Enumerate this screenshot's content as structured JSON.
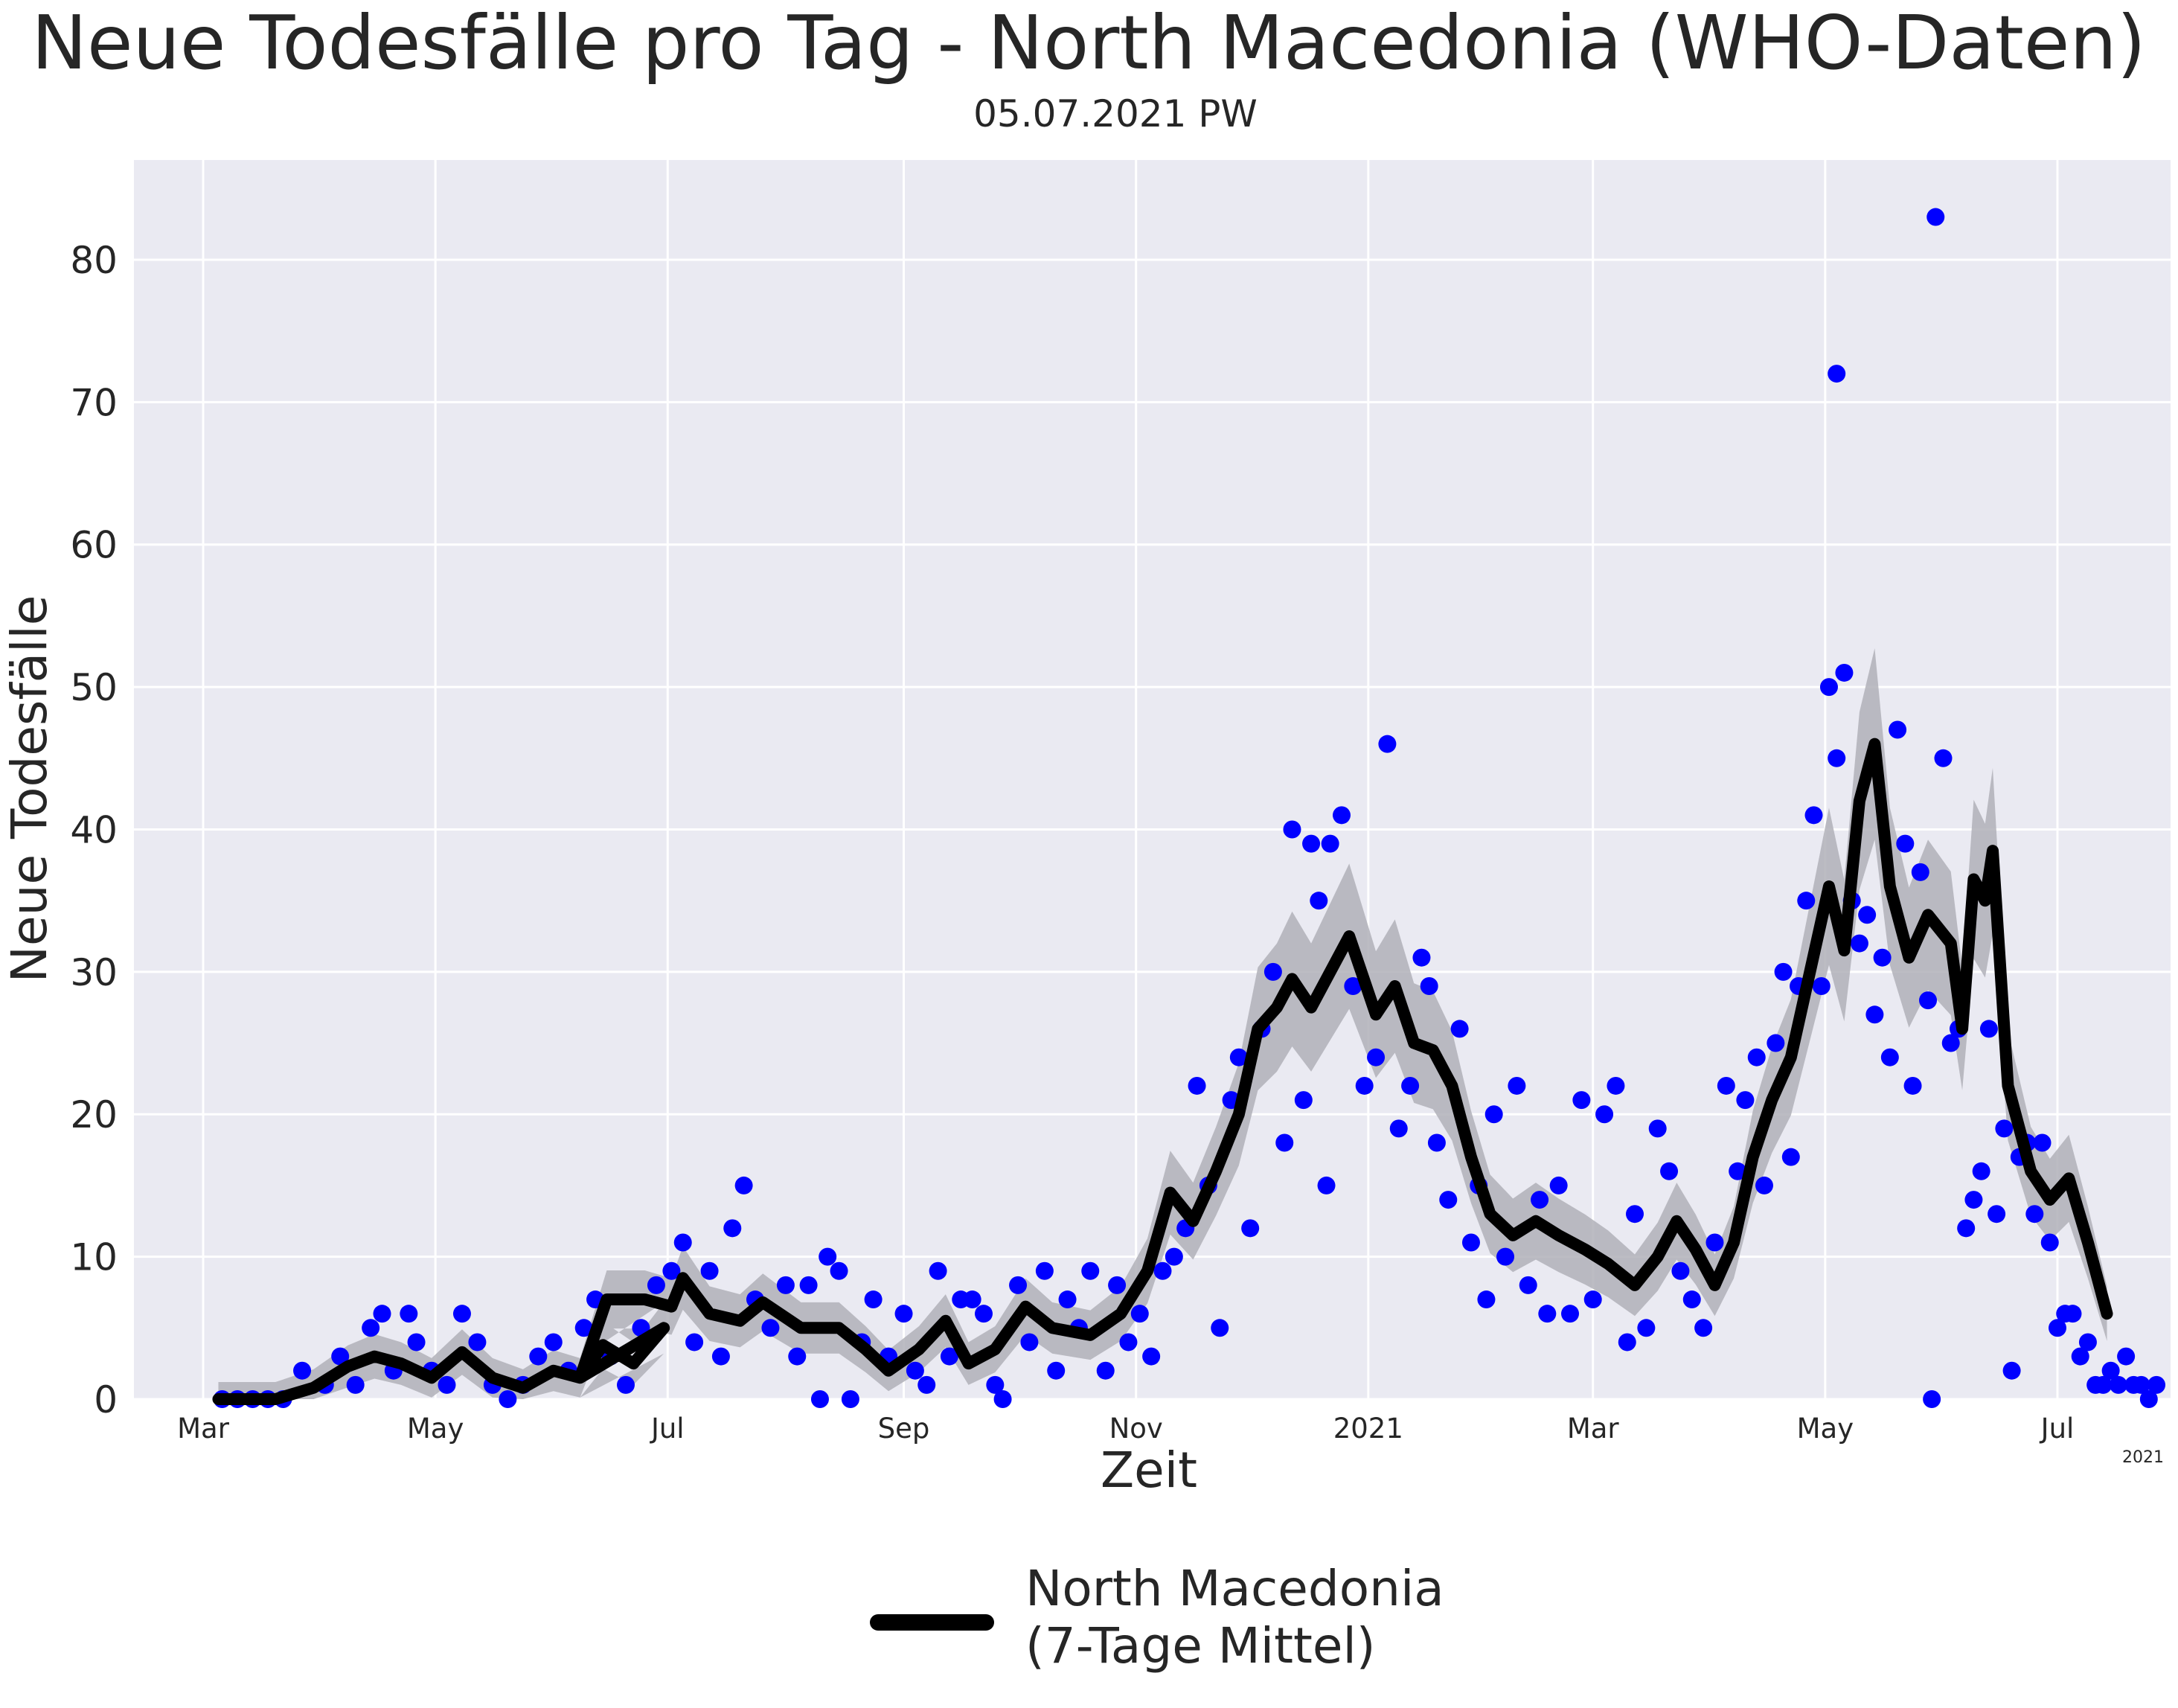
{
  "chart_data": {
    "type": "line",
    "title": "Neue Todesfälle pro Tag - North Macedonia (WHO-Daten)",
    "subtitle": "05.07.2021 PW",
    "xlabel": "Zeit",
    "ylabel": "Neue Todesfälle",
    "x_range": [
      "2020-02-01",
      "2021-07-20"
    ],
    "ylim": [
      0,
      87
    ],
    "yticks": [
      0,
      10,
      20,
      30,
      40,
      50,
      60,
      70,
      80
    ],
    "xticks": [
      {
        "date": "2020-03-01",
        "label": "Mar"
      },
      {
        "date": "2020-05-01",
        "label": "May"
      },
      {
        "date": "2020-07-01",
        "label": "Jul"
      },
      {
        "date": "2020-09-01",
        "label": "Sep"
      },
      {
        "date": "2020-11-01",
        "label": "Nov"
      },
      {
        "date": "2021-01-01",
        "label": "2021"
      },
      {
        "date": "2021-03-01",
        "label": "Mar"
      },
      {
        "date": "2021-05-01",
        "label": "May"
      },
      {
        "date": "2021-07-01",
        "label": "Jul"
      }
    ],
    "x_offset_label": "2021",
    "grid": true,
    "legend": {
      "position": "bottom-center",
      "entries": [
        {
          "label": "North Macedonia\n(7-Tage Mittel)",
          "color": "#000000"
        }
      ]
    },
    "colors": {
      "daily_points": "#0000ff",
      "mean_line": "#000000",
      "band": "#b0b0b8",
      "background": "#eaeaf2",
      "grid": "#ffffff"
    },
    "series": [
      {
        "name": "North Macedonia (7-Tage Mittel)",
        "kind": "line",
        "points": [
          [
            "2020-03-05",
            0
          ],
          [
            "2020-03-20",
            0
          ],
          [
            "2020-03-30",
            0.8
          ],
          [
            "2020-04-08",
            2.3
          ],
          [
            "2020-04-15",
            3
          ],
          [
            "2020-04-22",
            2.5
          ],
          [
            "2020-04-30",
            1.5
          ],
          [
            "2020-05-08",
            3.3
          ],
          [
            "2020-05-16",
            1.5
          ],
          [
            "2020-05-24",
            0.8
          ],
          [
            "2020-06-01",
            2
          ],
          [
            "2020-06-08",
            1.5
          ],
          [
            "2020-06-14",
            3.8
          ],
          [
            "2020-06-22",
            2.5
          ],
          [
            "2020-06-30",
            5
          ],
          [
            "2020-06-08",
            1.5
          ],
          [
            "2020-06-15",
            7
          ],
          [
            "2020-06-25",
            7
          ],
          [
            "2020-07-02",
            6.5
          ],
          [
            "2020-07-05",
            8.5
          ],
          [
            "2020-07-12",
            6
          ],
          [
            "2020-07-20",
            5.5
          ],
          [
            "2020-07-26",
            6.8
          ],
          [
            "2020-08-05",
            5
          ],
          [
            "2020-08-15",
            5
          ],
          [
            "2020-08-22",
            3.5
          ],
          [
            "2020-08-28",
            2
          ],
          [
            "2020-09-05",
            3.5
          ],
          [
            "2020-09-12",
            5.5
          ],
          [
            "2020-09-18",
            2.5
          ],
          [
            "2020-09-25",
            3.5
          ],
          [
            "2020-10-03",
            6.5
          ],
          [
            "2020-10-10",
            5
          ],
          [
            "2020-10-20",
            4.5
          ],
          [
            "2020-10-28",
            6
          ],
          [
            "2020-11-04",
            9
          ],
          [
            "2020-11-10",
            14.5
          ],
          [
            "2020-11-16",
            12.5
          ],
          [
            "2020-11-22",
            16
          ],
          [
            "2020-11-28",
            20
          ],
          [
            "2020-12-03",
            26
          ],
          [
            "2020-12-08",
            27.5
          ],
          [
            "2020-12-12",
            29.5
          ],
          [
            "2020-12-17",
            27.5
          ],
          [
            "2020-12-22",
            30
          ],
          [
            "2020-12-27",
            32.5
          ],
          [
            "2021-01-03",
            27
          ],
          [
            "2021-01-08",
            29
          ],
          [
            "2021-01-13",
            25
          ],
          [
            "2021-01-18",
            24.5
          ],
          [
            "2021-01-23",
            22
          ],
          [
            "2021-01-28",
            17
          ],
          [
            "2021-02-02",
            13
          ],
          [
            "2021-02-08",
            11.5
          ],
          [
            "2021-02-14",
            12.5
          ],
          [
            "2021-02-20",
            11.5
          ],
          [
            "2021-02-27",
            10.5
          ],
          [
            "2021-03-05",
            9.5
          ],
          [
            "2021-03-12",
            8
          ],
          [
            "2021-03-18",
            10
          ],
          [
            "2021-03-23",
            12.5
          ],
          [
            "2021-03-28",
            10.5
          ],
          [
            "2021-04-02",
            8
          ],
          [
            "2021-04-07",
            11
          ],
          [
            "2021-04-12",
            17
          ],
          [
            "2021-04-17",
            21
          ],
          [
            "2021-04-22",
            24
          ],
          [
            "2021-04-27",
            30
          ],
          [
            "2021-05-02",
            36
          ],
          [
            "2021-05-06",
            31.5
          ],
          [
            "2021-05-10",
            42
          ],
          [
            "2021-05-14",
            46
          ],
          [
            "2021-05-18",
            36
          ],
          [
            "2021-05-23",
            31
          ],
          [
            "2021-05-28",
            34
          ],
          [
            "2021-06-03",
            32
          ],
          [
            "2021-06-06",
            26
          ],
          [
            "2021-06-09",
            36.5
          ],
          [
            "2021-06-12",
            35
          ],
          [
            "2021-06-14",
            38.5
          ],
          [
            "2021-06-18",
            22
          ],
          [
            "2021-06-24",
            16
          ],
          [
            "2021-06-29",
            14
          ],
          [
            "2021-07-04",
            15.5
          ],
          [
            "2021-07-09",
            11
          ],
          [
            "2021-07-14",
            6
          ]
        ]
      },
      {
        "name": "",
        "kind": "scatter",
        "points": [
          [
            "2020-03-06",
            0
          ],
          [
            "2020-03-10",
            0
          ],
          [
            "2020-03-14",
            0
          ],
          [
            "2020-03-18",
            0
          ],
          [
            "2020-03-22",
            0
          ],
          [
            "2020-03-27",
            2
          ],
          [
            "2020-04-02",
            1
          ],
          [
            "2020-04-06",
            3
          ],
          [
            "2020-04-10",
            1
          ],
          [
            "2020-04-14",
            5
          ],
          [
            "2020-04-17",
            6
          ],
          [
            "2020-04-20",
            2
          ],
          [
            "2020-04-24",
            6
          ],
          [
            "2020-04-26",
            4
          ],
          [
            "2020-04-30",
            2
          ],
          [
            "2020-05-04",
            1
          ],
          [
            "2020-05-08",
            6
          ],
          [
            "2020-05-12",
            4
          ],
          [
            "2020-05-16",
            1
          ],
          [
            "2020-05-20",
            0
          ],
          [
            "2020-05-24",
            1
          ],
          [
            "2020-05-28",
            3
          ],
          [
            "2020-06-01",
            4
          ],
          [
            "2020-06-05",
            2
          ],
          [
            "2020-06-09",
            5
          ],
          [
            "2020-06-12",
            7
          ],
          [
            "2020-06-16",
            3
          ],
          [
            "2020-06-20",
            1
          ],
          [
            "2020-06-24",
            5
          ],
          [
            "2020-06-28",
            8
          ],
          [
            "2020-07-02",
            9
          ],
          [
            "2020-07-05",
            11
          ],
          [
            "2020-07-08",
            4
          ],
          [
            "2020-07-12",
            9
          ],
          [
            "2020-07-15",
            3
          ],
          [
            "2020-07-18",
            12
          ],
          [
            "2020-07-21",
            15
          ],
          [
            "2020-07-24",
            7
          ],
          [
            "2020-07-28",
            5
          ],
          [
            "2020-08-01",
            8
          ],
          [
            "2020-08-04",
            3
          ],
          [
            "2020-08-07",
            8
          ],
          [
            "2020-08-10",
            0
          ],
          [
            "2020-08-12",
            10
          ],
          [
            "2020-08-15",
            9
          ],
          [
            "2020-08-18",
            0
          ],
          [
            "2020-08-21",
            4
          ],
          [
            "2020-08-24",
            7
          ],
          [
            "2020-08-28",
            3
          ],
          [
            "2020-09-01",
            6
          ],
          [
            "2020-09-04",
            2
          ],
          [
            "2020-09-07",
            1
          ],
          [
            "2020-09-10",
            9
          ],
          [
            "2020-09-13",
            3
          ],
          [
            "2020-09-16",
            7
          ],
          [
            "2020-09-19",
            7
          ],
          [
            "2020-09-22",
            6
          ],
          [
            "2020-09-25",
            1
          ],
          [
            "2020-09-27",
            0
          ],
          [
            "2020-10-01",
            8
          ],
          [
            "2020-10-04",
            4
          ],
          [
            "2020-10-08",
            9
          ],
          [
            "2020-10-11",
            2
          ],
          [
            "2020-10-14",
            7
          ],
          [
            "2020-10-17",
            5
          ],
          [
            "2020-10-20",
            9
          ],
          [
            "2020-10-24",
            2
          ],
          [
            "2020-10-27",
            8
          ],
          [
            "2020-10-30",
            4
          ],
          [
            "2020-11-02",
            6
          ],
          [
            "2020-11-05",
            3
          ],
          [
            "2020-11-08",
            9
          ],
          [
            "2020-11-11",
            10
          ],
          [
            "2020-11-14",
            12
          ],
          [
            "2020-11-17",
            22
          ],
          [
            "2020-11-20",
            15
          ],
          [
            "2020-11-23",
            5
          ],
          [
            "2020-11-26",
            21
          ],
          [
            "2020-11-28",
            24
          ],
          [
            "2020-12-01",
            12
          ],
          [
            "2020-12-04",
            26
          ],
          [
            "2020-12-07",
            30
          ],
          [
            "2020-12-10",
            18
          ],
          [
            "2020-12-12",
            40
          ],
          [
            "2020-12-15",
            21
          ],
          [
            "2020-12-17",
            39
          ],
          [
            "2020-12-19",
            35
          ],
          [
            "2020-12-21",
            15
          ],
          [
            "2020-12-22",
            39
          ],
          [
            "2020-12-25",
            41
          ],
          [
            "2020-12-28",
            29
          ],
          [
            "2020-12-31",
            22
          ],
          [
            "2021-01-03",
            24
          ],
          [
            "2021-01-06",
            46
          ],
          [
            "2021-01-09",
            19
          ],
          [
            "2021-01-12",
            22
          ],
          [
            "2021-01-15",
            31
          ],
          [
            "2021-01-17",
            29
          ],
          [
            "2021-01-19",
            18
          ],
          [
            "2021-01-22",
            14
          ],
          [
            "2021-01-25",
            26
          ],
          [
            "2021-01-28",
            11
          ],
          [
            "2021-01-30",
            15
          ],
          [
            "2021-02-01",
            7
          ],
          [
            "2021-02-03",
            20
          ],
          [
            "2021-02-06",
            10
          ],
          [
            "2021-02-09",
            22
          ],
          [
            "2021-02-12",
            8
          ],
          [
            "2021-02-15",
            14
          ],
          [
            "2021-02-17",
            6
          ],
          [
            "2021-02-20",
            15
          ],
          [
            "2021-02-23",
            6
          ],
          [
            "2021-02-26",
            21
          ],
          [
            "2021-03-01",
            7
          ],
          [
            "2021-03-04",
            20
          ],
          [
            "2021-03-07",
            22
          ],
          [
            "2021-03-10",
            4
          ],
          [
            "2021-03-12",
            13
          ],
          [
            "2021-03-15",
            5
          ],
          [
            "2021-03-18",
            19
          ],
          [
            "2021-03-21",
            16
          ],
          [
            "2021-03-24",
            9
          ],
          [
            "2021-03-27",
            7
          ],
          [
            "2021-03-30",
            5
          ],
          [
            "2021-04-02",
            11
          ],
          [
            "2021-04-05",
            22
          ],
          [
            "2021-04-08",
            16
          ],
          [
            "2021-04-10",
            21
          ],
          [
            "2021-04-13",
            24
          ],
          [
            "2021-04-15",
            15
          ],
          [
            "2021-04-18",
            25
          ],
          [
            "2021-04-20",
            30
          ],
          [
            "2021-04-22",
            17
          ],
          [
            "2021-04-24",
            29
          ],
          [
            "2021-04-26",
            35
          ],
          [
            "2021-04-28",
            41
          ],
          [
            "2021-04-30",
            29
          ],
          [
            "2021-05-02",
            50
          ],
          [
            "2021-05-04",
            45
          ],
          [
            "2021-05-04",
            72
          ],
          [
            "2021-05-06",
            51
          ],
          [
            "2021-05-08",
            35
          ],
          [
            "2021-05-10",
            32
          ],
          [
            "2021-05-12",
            34
          ],
          [
            "2021-05-14",
            27
          ],
          [
            "2021-05-16",
            31
          ],
          [
            "2021-05-18",
            24
          ],
          [
            "2021-05-20",
            47
          ],
          [
            "2021-05-22",
            39
          ],
          [
            "2021-05-24",
            22
          ],
          [
            "2021-05-26",
            37
          ],
          [
            "2021-05-28",
            28
          ],
          [
            "2021-05-29",
            0
          ],
          [
            "2021-05-30",
            83
          ],
          [
            "2021-06-01",
            45
          ],
          [
            "2021-06-03",
            25
          ],
          [
            "2021-06-05",
            26
          ],
          [
            "2021-06-07",
            12
          ],
          [
            "2021-06-09",
            14
          ],
          [
            "2021-06-11",
            16
          ],
          [
            "2021-06-13",
            26
          ],
          [
            "2021-06-15",
            13
          ],
          [
            "2021-06-17",
            19
          ],
          [
            "2021-06-19",
            2
          ],
          [
            "2021-06-21",
            17
          ],
          [
            "2021-06-23",
            18
          ],
          [
            "2021-06-25",
            13
          ],
          [
            "2021-06-27",
            18
          ],
          [
            "2021-06-29",
            11
          ],
          [
            "2021-07-01",
            5
          ],
          [
            "2021-07-03",
            6
          ],
          [
            "2021-07-05",
            6
          ],
          [
            "2021-07-07",
            3
          ],
          [
            "2021-07-09",
            4
          ],
          [
            "2021-07-11",
            1
          ],
          [
            "2021-07-13",
            1
          ],
          [
            "2021-07-15",
            2
          ],
          [
            "2021-07-17",
            1
          ],
          [
            "2021-07-19",
            3
          ],
          [
            "2021-07-21",
            1
          ],
          [
            "2021-07-23",
            1
          ],
          [
            "2021-07-25",
            0
          ],
          [
            "2021-07-27",
            1
          ]
        ]
      }
    ]
  }
}
